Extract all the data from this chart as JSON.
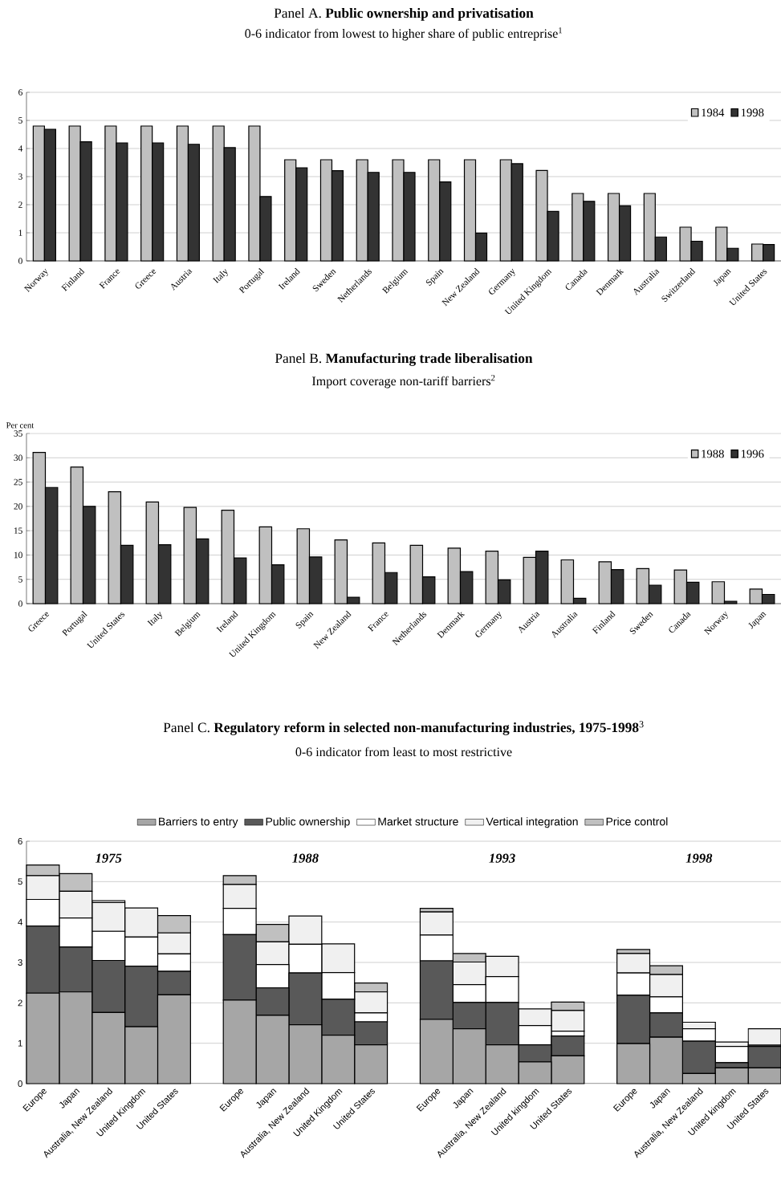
{
  "chart_data": [
    {
      "type": "bar",
      "title": "Panel A. **Public ownership and privatisation**",
      "subtitle": "0-6 indicator from lowest to higher share of public entreprise$^{1}$",
      "categories": [
        "Norway",
        "Finland",
        "France",
        "Greece",
        "Austria",
        "Italy",
        "Portugal",
        "Ireland",
        "Sweden",
        "Netherlands",
        "Belgium",
        "Spain",
        "New Zealand",
        "Germany",
        "United Kingdom",
        "Canada",
        "Denmark",
        "Australia",
        "Switzerland",
        "Japan",
        "United States"
      ],
      "series": [
        {
          "name": "1984",
          "color": "#c0c0c0",
          "values": [
            4.8,
            4.8,
            4.8,
            4.8,
            4.8,
            4.8,
            4.8,
            3.6,
            3.6,
            3.6,
            3.6,
            3.6,
            3.6,
            3.6,
            3.22,
            2.4,
            2.4,
            2.4,
            1.2,
            1.2,
            0.6
          ]
        },
        {
          "name": "1998",
          "color": "#333333",
          "values": [
            4.68,
            4.24,
            4.2,
            4.2,
            4.15,
            4.03,
            2.29,
            3.31,
            3.21,
            3.15,
            3.15,
            2.81,
            0.99,
            3.46,
            1.76,
            2.12,
            1.96,
            0.85,
            0.7,
            0.45,
            0.58
          ]
        }
      ],
      "ylim": [
        0,
        6
      ],
      "yticks": [
        0,
        1,
        2,
        3,
        4,
        5,
        6
      ],
      "grid": "y",
      "legend": "top right"
    },
    {
      "type": "bar",
      "title": "Panel B. **Manufacturing trade liberalisation**",
      "subtitle": "Import coverage non-tariff barriers$^{2}$",
      "ylabel": "Per cent",
      "categories": [
        "Greece",
        "Portugal",
        "United States",
        "Italy",
        "Belgium",
        "Ireland",
        "United Kingdom",
        "Spain",
        "New Zealand",
        "France",
        "Netherlands",
        "Denmark",
        "Germany",
        "Austria",
        "Australia",
        "Finland",
        "Sweden",
        "Canada",
        "Norway",
        "Japan"
      ],
      "series": [
        {
          "name": "1988",
          "color": "#c0c0c0",
          "values": [
            31.1,
            28.1,
            23.0,
            20.9,
            19.8,
            19.2,
            15.8,
            15.4,
            13.1,
            12.5,
            12.0,
            11.4,
            10.8,
            9.5,
            9.0,
            8.6,
            7.2,
            6.9,
            4.5,
            3.0
          ]
        },
        {
          "name": "1996",
          "color": "#333333",
          "values": [
            23.9,
            20.0,
            12.0,
            12.1,
            13.3,
            9.4,
            8.0,
            9.6,
            1.3,
            6.4,
            5.5,
            6.6,
            4.9,
            10.8,
            1.1,
            7.0,
            3.8,
            4.4,
            0.5,
            1.9
          ]
        }
      ],
      "ylim": [
        0,
        35
      ],
      "yticks": [
        0,
        5,
        10,
        15,
        20,
        25,
        30,
        35
      ],
      "grid": "y",
      "legend": "top right"
    },
    {
      "type": "bar",
      "stacked": true,
      "title": "Panel C.  **Regulatory reform in selected non-manufacturing industries, 1975-1998**$^{3}$",
      "subtitle": "0-6 indicator from least to most restrictive",
      "categories": [
        "Europe",
        "Japan",
        "Australia, New Zealand",
        "United Kingdom",
        "United States",
        null,
        "Europe",
        "Japan",
        "Australia, New Zealand",
        "United Kingdom",
        "United States",
        null,
        "Europe",
        "Japan",
        "Australia, New Zealand",
        "United kingdom",
        "United States",
        null,
        "Europe",
        "Japan",
        "Australia, New Zealand",
        "United kingdom",
        "United States"
      ],
      "series": [
        {
          "name": "Barriers to entry",
          "color": "#a6a6a6",
          "values": [
            2.24,
            2.27,
            1.76,
            1.41,
            2.2,
            null,
            2.07,
            1.69,
            1.46,
            1.2,
            0.96,
            null,
            1.59,
            1.36,
            0.96,
            0.54,
            0.69,
            null,
            0.99,
            1.15,
            0.25,
            0.39,
            0.39
          ]
        },
        {
          "name": "Public ownership",
          "color": "#595959",
          "values": [
            1.66,
            1.11,
            1.29,
            1.5,
            0.58,
            null,
            1.62,
            0.68,
            1.28,
            0.89,
            0.57,
            null,
            1.45,
            0.65,
            1.05,
            0.42,
            0.49,
            null,
            1.2,
            0.6,
            0.8,
            0.13,
            0.53
          ]
        },
        {
          "name": "Market structure",
          "color": "#ffffff",
          "values": [
            0.66,
            0.72,
            0.72,
            0.72,
            0.43,
            null,
            0.65,
            0.58,
            0.71,
            0.66,
            0.22,
            null,
            0.64,
            0.44,
            0.64,
            0.48,
            0.12,
            null,
            0.55,
            0.4,
            0.31,
            0.4,
            0.03
          ]
        },
        {
          "name": "Vertical integration",
          "color": "#f0f0f0",
          "values": [
            0.59,
            0.66,
            0.71,
            0.72,
            0.52,
            null,
            0.59,
            0.56,
            0.7,
            0.71,
            0.52,
            null,
            0.57,
            0.56,
            0.5,
            0.41,
            0.51,
            null,
            0.48,
            0.55,
            0.16,
            0.11,
            0.41
          ]
        },
        {
          "name": "Price control",
          "color": "#c0c0c0",
          "values": [
            0.26,
            0.44,
            0.05,
            null,
            0.43,
            null,
            0.22,
            0.43,
            null,
            null,
            0.22,
            null,
            0.09,
            0.21,
            null,
            null,
            0.21,
            null,
            0.1,
            0.22,
            null,
            null,
            null
          ]
        }
      ],
      "annotations": [
        "1975",
        "1988",
        "1993",
        "1998"
      ],
      "ylim": [
        0,
        6
      ],
      "yticks": [
        0,
        1,
        2,
        3,
        4,
        5,
        6
      ],
      "grid": "y",
      "legend": "top"
    }
  ]
}
